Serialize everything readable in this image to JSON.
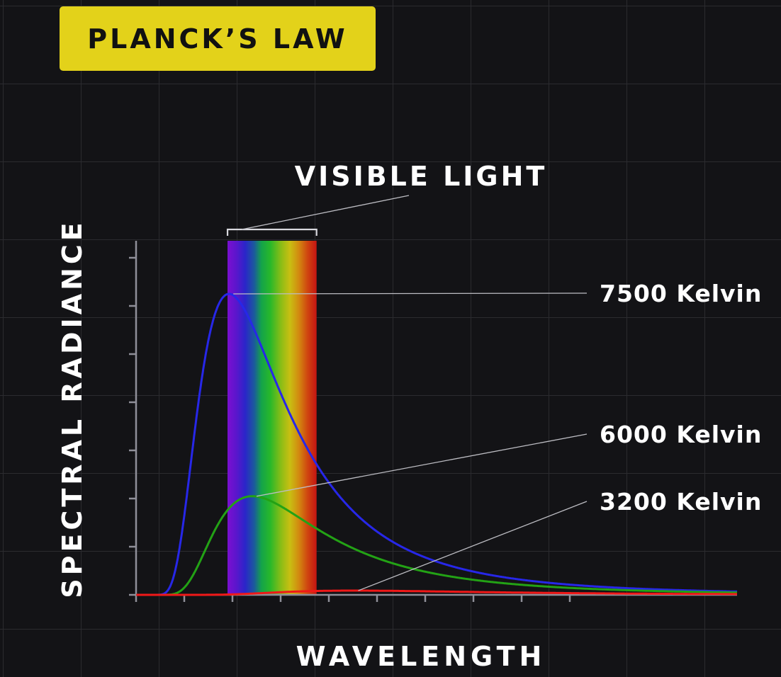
{
  "title": "PLANCK’S LAW",
  "chart_data": {
    "type": "line",
    "title": "PLANCK’S LAW",
    "xlabel": "WAVELENGTH",
    "ylabel": "SPECTRAL RADIANCE",
    "x_unit": "nm",
    "xlim": [
      0,
      2500
    ],
    "ylim": [
      0,
      1
    ],
    "grid": true,
    "tick_labels_shown": false,
    "visible_band": {
      "label": "VISIBLE LIGHT",
      "x_range": [
        380,
        750
      ]
    },
    "series": [
      {
        "name": "7500 Kelvin",
        "temperature_k": 7500,
        "color": "#2727e8"
      },
      {
        "name": "6000 Kelvin",
        "temperature_k": 6000,
        "color": "#23a215"
      },
      {
        "name": "3200 Kelvin",
        "temperature_k": 3200,
        "color": "#f01818"
      }
    ],
    "colors": {
      "badge": "#e3d21a",
      "background": "#131316",
      "axis": "#8f8f99"
    }
  }
}
